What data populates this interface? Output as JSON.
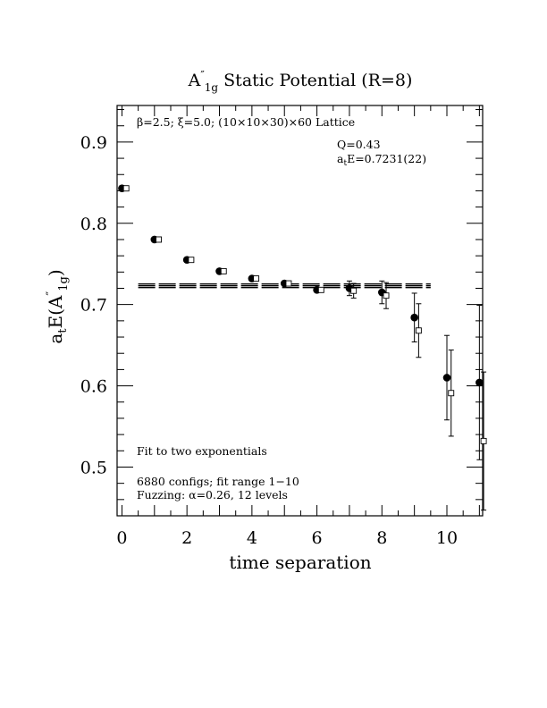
{
  "chart_data": {
    "type": "scatter",
    "title": {
      "main": "A",
      "sup": "″",
      "sub": "1g",
      "rest": " Static Potential (R=8)"
    },
    "xlabel": "time separation",
    "ylabel": {
      "pre": "a",
      "sub1": "t",
      "mid": "E(A",
      "sup": "″",
      "sub2": "1g",
      "post": ")"
    },
    "xlim": [
      -0.15,
      11.1
    ],
    "ylim": [
      0.44,
      0.945
    ],
    "x_ticks": [
      0,
      2,
      4,
      6,
      8,
      10
    ],
    "x_tick_labels": [
      "0",
      "2",
      "4",
      "6",
      "8",
      "10"
    ],
    "y_ticks": [
      0.5,
      0.6,
      0.7,
      0.8,
      0.9
    ],
    "y_tick_labels": [
      "0.5",
      "0.6",
      "0.7",
      "0.8",
      "0.9"
    ],
    "lattice_info": "β=2.5; ξ=5.0; (10×10×30)×60 Lattice",
    "fit_q": "Q=0.43",
    "fit_energy": {
      "pre": "a",
      "sub": "t",
      "post": "E=0.7231(22)"
    },
    "fit_method": "Fit to two exponentials",
    "configs": "6880 configs; fit range 1−10",
    "fuzzing": "Fuzzing: α=0.26, 12 levels",
    "fit": {
      "value": 0.7231,
      "error": 0.0022,
      "x_range": [
        0.5,
        9.5
      ]
    },
    "series": [
      {
        "marker": "filled-circle",
        "points": [
          {
            "x": 0,
            "y": 0.843,
            "err": 0.001
          },
          {
            "x": 1,
            "y": 0.78,
            "err": 0.002
          },
          {
            "x": 2,
            "y": 0.755,
            "err": 0.002
          },
          {
            "x": 3,
            "y": 0.741,
            "err": 0.002
          },
          {
            "x": 4,
            "y": 0.732,
            "err": 0.003
          },
          {
            "x": 5,
            "y": 0.726,
            "err": 0.003
          },
          {
            "x": 6,
            "y": 0.718,
            "err": 0.004
          },
          {
            "x": 7,
            "y": 0.72,
            "err": 0.009
          },
          {
            "x": 8,
            "y": 0.715,
            "err": 0.014
          },
          {
            "x": 9,
            "y": 0.684,
            "err": 0.03
          },
          {
            "x": 10,
            "y": 0.61,
            "err": 0.052
          },
          {
            "x": 11,
            "y": 0.604,
            "err": 0.095
          }
        ]
      },
      {
        "marker": "open-square",
        "points": [
          {
            "x": 0,
            "y": 0.843,
            "err": 0.001
          },
          {
            "x": 1,
            "y": 0.78,
            "err": 0.002
          },
          {
            "x": 2,
            "y": 0.755,
            "err": 0.002
          },
          {
            "x": 3,
            "y": 0.741,
            "err": 0.002
          },
          {
            "x": 4,
            "y": 0.732,
            "err": 0.003
          },
          {
            "x": 5,
            "y": 0.726,
            "err": 0.003
          },
          {
            "x": 6,
            "y": 0.718,
            "err": 0.004
          },
          {
            "x": 7,
            "y": 0.717,
            "err": 0.009
          },
          {
            "x": 8,
            "y": 0.711,
            "err": 0.016
          },
          {
            "x": 9,
            "y": 0.668,
            "err": 0.033
          },
          {
            "x": 10,
            "y": 0.591,
            "err": 0.053
          },
          {
            "x": 11,
            "y": 0.532,
            "err": 0.085
          }
        ]
      }
    ]
  }
}
